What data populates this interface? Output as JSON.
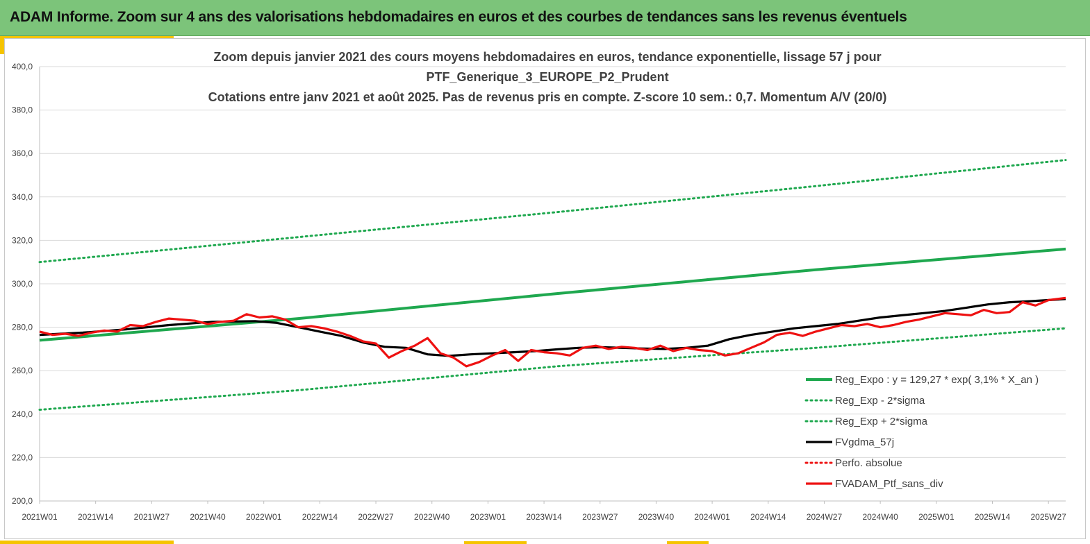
{
  "banner": {
    "title": "ADAM Informe. Zoom sur 4 ans des valorisations hebdomadaires en euros et des courbes de tendances sans les revenus éventuels"
  },
  "colors": {
    "banner": "#7cc47a",
    "green": "#1fa84f",
    "black": "#000000",
    "red": "#ee1111",
    "grid": "#d9d9d9",
    "accent": "#f5c400"
  },
  "chart_data": {
    "type": "line",
    "title_lines": [
      "Zoom depuis janvier 2021 des cours moyens hebdomadaires  en euros, tendance exponentielle, lissage 57 j pour",
      "PTF_Generique_3_EUROPE_P2_Prudent",
      "Cotations  entre janv 2021 et août 2025. Pas de revenus pris en compte. Z-score 10 sem.: 0,7. Momentum A/V (20/0)"
    ],
    "y_ticks": [
      "400,0",
      "380,0",
      "360,0",
      "340,0",
      "320,0",
      "300,0",
      "280,0",
      "260,0",
      "240,0",
      "220,0",
      "200,0"
    ],
    "ylim": [
      200,
      400
    ],
    "x_ticks": [
      "2021W01",
      "2021W14",
      "2021W27",
      "2021W40",
      "2022W01",
      "2022W14",
      "2022W27",
      "2022W40",
      "2023W01",
      "2023W14",
      "2023W27",
      "2023W40",
      "2024W01",
      "2024W14",
      "2024W27",
      "2024W40",
      "2025W01",
      "2025W14",
      "2025W27"
    ],
    "xlim": [
      0,
      238
    ],
    "grid": "horizontal",
    "legend": {
      "position": "bottom-right",
      "entries": [
        {
          "label": "Reg_Expo : y = 129,27 * exp( 3,1% *  X_an )",
          "style": "solid-green"
        },
        {
          "label": "Reg_Exp - 2*sigma",
          "style": "dotted-green"
        },
        {
          "label": "Reg_Exp + 2*sigma",
          "style": "dotted-green"
        },
        {
          "label": "FVgdma_57j",
          "style": "solid-black"
        },
        {
          "label": "Perfo. absolue",
          "style": "dotted-red"
        },
        {
          "label": "FVADAM_Ptf_sans_div",
          "style": "solid-red"
        }
      ]
    },
    "series": [
      {
        "name": "Reg_Expo : y = 129,27 * exp( 3,1% *  X_an )",
        "style": "solid-green",
        "x": [
          0,
          60,
          120,
          180,
          238
        ],
        "values": [
          274.0,
          284.0,
          295.5,
          306.5,
          316.0
        ]
      },
      {
        "name": "Reg_Exp - 2*sigma",
        "style": "dotted-green",
        "x": [
          0,
          60,
          120,
          180,
          238
        ],
        "values": [
          242.0,
          251.0,
          262.0,
          270.5,
          279.5
        ]
      },
      {
        "name": "Reg_Exp + 2*sigma",
        "style": "dotted-green",
        "x": [
          0,
          60,
          120,
          180,
          238
        ],
        "values": [
          310.0,
          321.5,
          333.0,
          345.0,
          357.0
        ]
      },
      {
        "name": "FVgdma_57j",
        "style": "solid-black",
        "x": [
          0,
          10,
          20,
          30,
          40,
          50,
          55,
          60,
          65,
          70,
          75,
          80,
          85,
          90,
          95,
          100,
          105,
          110,
          115,
          120,
          125,
          130,
          135,
          140,
          145,
          150,
          155,
          160,
          165,
          170,
          175,
          180,
          185,
          190,
          195,
          200,
          205,
          210,
          215,
          220,
          225,
          230,
          238
        ],
        "values": [
          276.5,
          277.5,
          279.0,
          281.0,
          282.5,
          282.8,
          282.0,
          280.0,
          278.0,
          276.0,
          273.0,
          271.0,
          270.5,
          267.5,
          266.8,
          267.5,
          268.0,
          268.5,
          269.0,
          269.8,
          270.5,
          270.8,
          270.5,
          270.2,
          270.0,
          270.5,
          271.5,
          274.5,
          276.5,
          278.0,
          279.5,
          280.5,
          281.5,
          283.0,
          284.5,
          285.5,
          286.5,
          287.5,
          289.0,
          290.5,
          291.5,
          292.0,
          293.0
        ]
      },
      {
        "name": "FVADAM_Ptf_sans_div",
        "style": "solid-red",
        "x": [
          0,
          3,
          6,
          9,
          12,
          15,
          18,
          21,
          24,
          27,
          30,
          33,
          36,
          39,
          42,
          45,
          48,
          51,
          54,
          57,
          60,
          63,
          66,
          69,
          72,
          75,
          78,
          81,
          84,
          87,
          90,
          93,
          96,
          99,
          102,
          105,
          108,
          111,
          114,
          117,
          120,
          123,
          126,
          129,
          132,
          135,
          138,
          141,
          144,
          147,
          150,
          153,
          156,
          159,
          162,
          165,
          168,
          171,
          174,
          177,
          180,
          183,
          186,
          189,
          192,
          195,
          198,
          201,
          204,
          207,
          210,
          213,
          216,
          219,
          222,
          225,
          228,
          231,
          234,
          238
        ],
        "values": [
          278.0,
          276.5,
          277.0,
          276.0,
          277.5,
          278.5,
          278.0,
          281.0,
          280.5,
          282.5,
          284.0,
          283.5,
          283.0,
          281.5,
          282.5,
          283.0,
          286.0,
          284.5,
          285.0,
          283.5,
          280.0,
          280.5,
          279.5,
          278.0,
          276.0,
          273.5,
          272.5,
          266.0,
          269.0,
          271.5,
          275.0,
          268.0,
          266.0,
          262.0,
          264.0,
          267.0,
          269.5,
          264.5,
          269.5,
          268.5,
          268.0,
          267.0,
          270.5,
          271.5,
          270.0,
          271.0,
          270.5,
          269.5,
          271.5,
          269.0,
          270.5,
          269.5,
          269.0,
          267.0,
          268.0,
          270.5,
          273.0,
          276.5,
          277.5,
          276.0,
          278.0,
          279.5,
          281.0,
          280.5,
          281.5,
          280.0,
          281.0,
          282.5,
          283.5,
          285.0,
          286.5,
          286.0,
          285.5,
          288.0,
          286.5,
          287.0,
          291.5,
          290.0,
          292.5,
          293.5
        ]
      }
    ]
  }
}
